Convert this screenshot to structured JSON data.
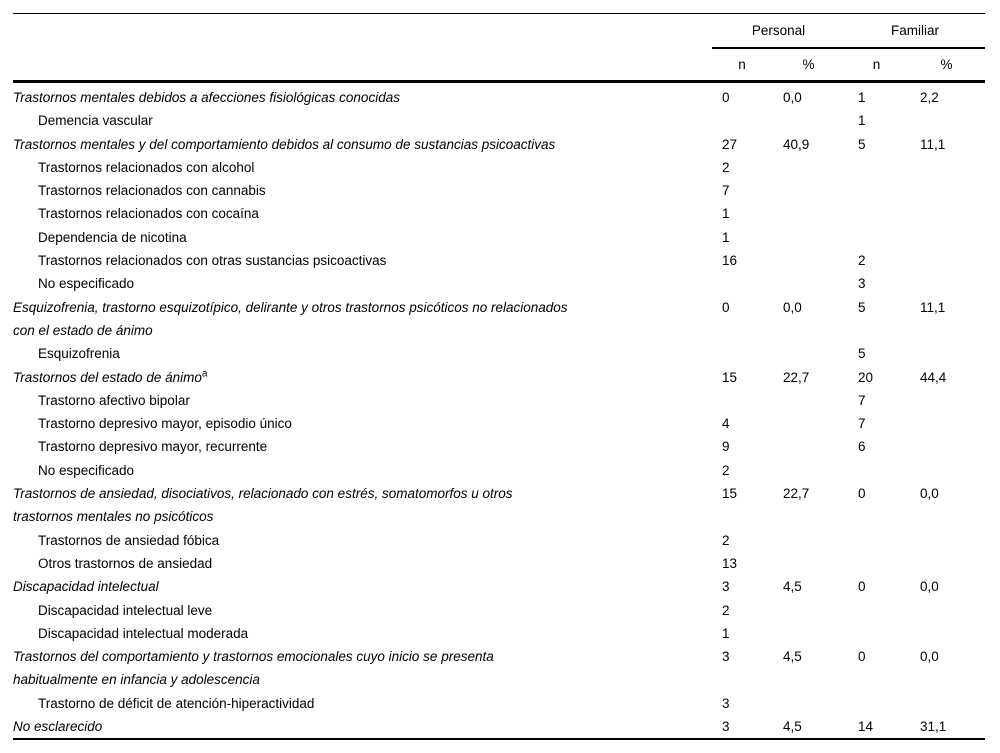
{
  "table": {
    "groups": [
      {
        "label": "Personal"
      },
      {
        "label": "Familiar"
      }
    ],
    "subheaders": [
      "n",
      "%",
      "n",
      "%"
    ],
    "rows": [
      {
        "style": "category",
        "lines": [
          "Trastornos mentales debidos a afecciones fisiológicas conocidas"
        ],
        "values": [
          "0",
          "0,0",
          "1",
          "2,2"
        ]
      },
      {
        "style": "sub",
        "lines": [
          "Demencia vascular"
        ],
        "values": [
          "",
          "",
          "1",
          ""
        ]
      },
      {
        "style": "category",
        "lines": [
          "Trastornos mentales y del comportamiento debidos al consumo de sustancias psicoactivas"
        ],
        "values": [
          "27",
          "40,9",
          "5",
          "11,1"
        ]
      },
      {
        "style": "sub",
        "lines": [
          "Trastornos relacionados con alcohol"
        ],
        "values": [
          "2",
          "",
          "",
          ""
        ]
      },
      {
        "style": "sub",
        "lines": [
          "Trastornos relacionados con cannabis"
        ],
        "values": [
          "7",
          "",
          "",
          ""
        ]
      },
      {
        "style": "sub",
        "lines": [
          "Trastornos relacionados con cocaína"
        ],
        "values": [
          "1",
          "",
          "",
          ""
        ]
      },
      {
        "style": "sub",
        "lines": [
          "Dependencia de nicotina"
        ],
        "values": [
          "1",
          "",
          "",
          ""
        ]
      },
      {
        "style": "sub",
        "lines": [
          "Trastornos relacionados con otras sustancias psicoactivas"
        ],
        "values": [
          "16",
          "",
          "2",
          ""
        ]
      },
      {
        "style": "sub",
        "lines": [
          "No especificado"
        ],
        "values": [
          "",
          "",
          "3",
          ""
        ]
      },
      {
        "style": "category",
        "lines": [
          "Esquizofrenia, trastorno esquizotípico, delirante y otros trastornos psicóticos no relacionados",
          "con el estado de ánimo"
        ],
        "values": [
          "0",
          "0,0",
          "5",
          "11,1"
        ]
      },
      {
        "style": "sub",
        "lines": [
          "Esquizofrenia"
        ],
        "values": [
          "",
          "",
          "5",
          ""
        ]
      },
      {
        "style": "category",
        "lines": [
          "Trastornos del estado de ánimo"
        ],
        "sup": "a",
        "values": [
          "15",
          "22,7",
          "20",
          "44,4"
        ]
      },
      {
        "style": "sub",
        "lines": [
          "Trastorno afectivo bipolar"
        ],
        "values": [
          "",
          "",
          "7",
          ""
        ]
      },
      {
        "style": "sub",
        "lines": [
          "Trastorno depresivo mayor, episodio único"
        ],
        "values": [
          "4",
          "",
          "7",
          ""
        ]
      },
      {
        "style": "sub",
        "lines": [
          "Trastorno depresivo mayor, recurrente"
        ],
        "values": [
          "9",
          "",
          "6",
          ""
        ]
      },
      {
        "style": "sub",
        "lines": [
          "No especificado"
        ],
        "values": [
          "2",
          "",
          "",
          ""
        ]
      },
      {
        "style": "category",
        "lines": [
          "Trastornos de ansiedad, disociativos, relacionado con estrés, somatomorfos u otros",
          "trastornos mentales no psicóticos"
        ],
        "values": [
          "15",
          "22,7",
          "0",
          "0,0"
        ]
      },
      {
        "style": "sub",
        "lines": [
          "Trastornos de ansiedad fóbica"
        ],
        "values": [
          "2",
          "",
          "",
          ""
        ]
      },
      {
        "style": "sub",
        "lines": [
          "Otros trastornos de ansiedad"
        ],
        "values": [
          "13",
          "",
          "",
          ""
        ]
      },
      {
        "style": "category",
        "lines": [
          "Discapacidad intelectual"
        ],
        "values": [
          "3",
          "4,5",
          "0",
          "0,0"
        ]
      },
      {
        "style": "sub",
        "lines": [
          "Discapacidad intelectual leve"
        ],
        "values": [
          "2",
          "",
          "",
          ""
        ]
      },
      {
        "style": "sub",
        "lines": [
          "Discapacidad intelectual moderada"
        ],
        "values": [
          "1",
          "",
          "",
          ""
        ]
      },
      {
        "style": "category",
        "lines": [
          "Trastornos del comportamiento y trastornos emocionales cuyo inicio se presenta",
          "habitualmente en infancia y adolescencia"
        ],
        "values": [
          "3",
          "4,5",
          "0",
          "0,0"
        ]
      },
      {
        "style": "sub",
        "lines": [
          "Trastorno de déficit de atención-hiperactividad"
        ],
        "values": [
          "3",
          "",
          "",
          ""
        ]
      },
      {
        "style": "category",
        "lines": [
          "No esclarecido"
        ],
        "values": [
          "3",
          "4,5",
          "14",
          "31,1"
        ]
      }
    ],
    "colors": {
      "rule": "#000000",
      "text": "#000000",
      "background": "#ffffff"
    }
  }
}
